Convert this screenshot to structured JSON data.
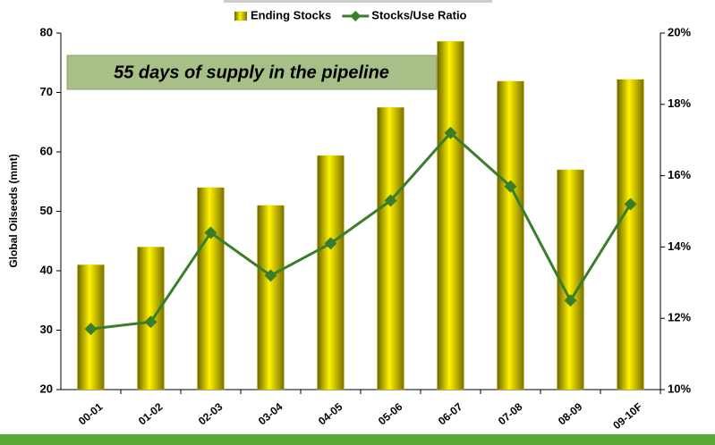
{
  "chart_data": {
    "type": "bar_line",
    "annotation": "55 days of supply in the pipeline",
    "ylabel": "Global Oilseeds (mmt)",
    "categories": [
      "00-01",
      "01-02",
      "02-03",
      "03-04",
      "04-05",
      "05-06",
      "06-07",
      "07-08",
      "08-09",
      "09-10F"
    ],
    "series": [
      {
        "name": "Ending Stocks",
        "color": "#e6dc00",
        "type": "bar",
        "values": [
          41,
          44,
          54,
          51,
          59.4,
          67.5,
          78.6,
          71.9,
          57,
          72.2
        ]
      },
      {
        "name": "Stocks/Use Ratio",
        "color": "#3a7d2a",
        "type": "line",
        "axis": "y2",
        "values": [
          11.7,
          11.9,
          14.4,
          13.2,
          14.1,
          15.3,
          17.2,
          15.7,
          12.5,
          15.2
        ]
      }
    ],
    "ylim": [
      20,
      80
    ],
    "yticks": [
      20,
      30,
      40,
      50,
      60,
      70,
      80
    ],
    "y2lim": [
      10,
      20
    ],
    "y2ticks": [
      {
        "value": 10,
        "label": "10%"
      },
      {
        "value": 12,
        "label": "12%"
      },
      {
        "value": 14,
        "label": "14%"
      },
      {
        "value": 16,
        "label": "16%"
      },
      {
        "value": 18,
        "label": "18%"
      },
      {
        "value": 20,
        "label": "20%"
      }
    ]
  }
}
